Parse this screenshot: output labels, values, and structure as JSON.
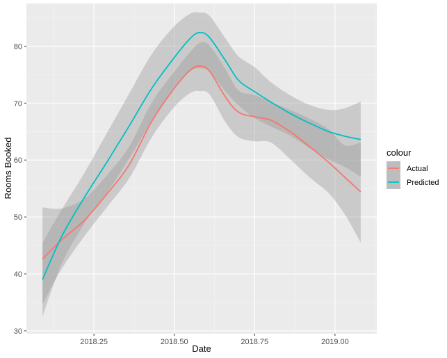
{
  "chart_data": {
    "type": "line",
    "xlabel": "Date",
    "ylabel": "Rooms Booked",
    "xlim": [
      2018.04,
      2019.13
    ],
    "ylim": [
      29.5,
      87.5
    ],
    "x_ticks": [
      2018.25,
      2018.5,
      2018.75,
      2019.0
    ],
    "x_tick_labels": [
      "2018.25",
      "2018.50",
      "2018.75",
      "2019.00"
    ],
    "y_ticks": [
      30,
      40,
      50,
      60,
      70,
      80
    ],
    "y_tick_labels": [
      "30",
      "40",
      "50",
      "60",
      "70",
      "80"
    ],
    "grid": true,
    "legend": {
      "title": "colour",
      "position": "right"
    },
    "series": [
      {
        "name": "Actual",
        "color": "#F8766D",
        "x": [
          2018.09,
          2018.15,
          2018.22,
          2018.29,
          2018.36,
          2018.43,
          2018.5,
          2018.55,
          2018.58,
          2018.61,
          2018.66,
          2018.7,
          2018.75,
          2018.8,
          2018.86,
          2018.92,
          2018.98,
          2019.03,
          2019.08
        ],
        "y": [
          42.6,
          46.0,
          49.4,
          54.0,
          59.2,
          66.8,
          72.6,
          75.8,
          76.5,
          75.6,
          71.0,
          68.4,
          67.6,
          67.0,
          65.0,
          62.4,
          59.6,
          57.0,
          54.4
        ],
        "ci_lower": [
          34.7,
          40.9,
          46.6,
          51.7,
          56.8,
          64.0,
          69.3,
          71.8,
          72.1,
          71.5,
          66.6,
          64.0,
          63.3,
          63.1,
          60.2,
          57.0,
          54.2,
          50.5,
          45.5
        ],
        "ci_upper": [
          51.7,
          51.5,
          53.2,
          57.3,
          62.4,
          70.1,
          75.5,
          79.0,
          80.6,
          80.1,
          75.9,
          72.2,
          71.4,
          70.2,
          68.8,
          67.3,
          65.4,
          62.6,
          63.1
        ]
      },
      {
        "name": "Predicted",
        "color": "#00BFC4",
        "x": [
          2018.09,
          2018.15,
          2018.22,
          2018.29,
          2018.36,
          2018.43,
          2018.5,
          2018.55,
          2018.58,
          2018.61,
          2018.66,
          2018.7,
          2018.75,
          2018.8,
          2018.86,
          2018.92,
          2018.98,
          2019.03,
          2019.08
        ],
        "y": [
          39.0,
          46.6,
          53.4,
          59.6,
          66.0,
          72.6,
          78.0,
          81.4,
          82.4,
          81.5,
          77.4,
          74.0,
          72.0,
          70.2,
          68.2,
          66.5,
          65.0,
          64.2,
          63.6
        ],
        "ci_lower": [
          32.5,
          41.8,
          48.8,
          54.2,
          60.3,
          66.9,
          72.8,
          75.6,
          76.1,
          75.5,
          72.0,
          69.6,
          67.4,
          65.9,
          64.3,
          62.1,
          60.1,
          58.8,
          57.1
        ],
        "ci_upper": [
          45.5,
          51.3,
          57.7,
          64.7,
          71.7,
          78.6,
          83.5,
          85.7,
          85.9,
          85.3,
          81.3,
          78.2,
          76.3,
          73.7,
          71.4,
          69.7,
          68.8,
          69.1,
          70.3
        ]
      }
    ]
  }
}
